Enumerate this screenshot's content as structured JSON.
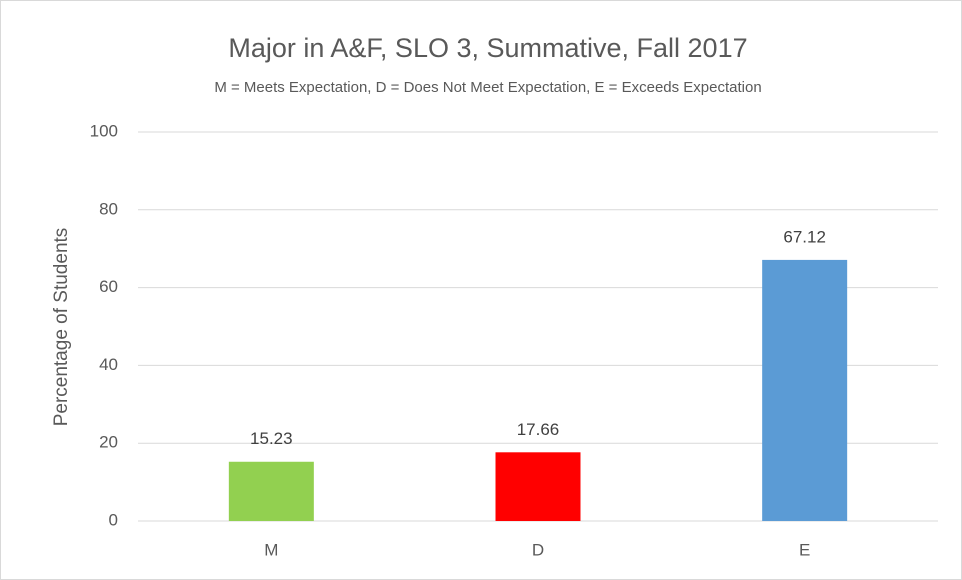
{
  "chart_data": {
    "type": "bar",
    "title": "Major in A&F, SLO 3, Summative, Fall 2017",
    "subtitle": "M = Meets Expectation, D = Does Not Meet Expectation, E = Exceeds Expectation",
    "y_label": "Percentage of Students",
    "categories": [
      "M",
      "D",
      "E"
    ],
    "values": [
      15.23,
      17.66,
      67.12
    ],
    "colors": [
      "#92d050",
      "#ff0000",
      "#5b9bd5"
    ],
    "ylim": [
      0,
      100
    ],
    "yticks": [
      0,
      20,
      40,
      60,
      80,
      100
    ],
    "grid": true,
    "data_labels": true
  }
}
